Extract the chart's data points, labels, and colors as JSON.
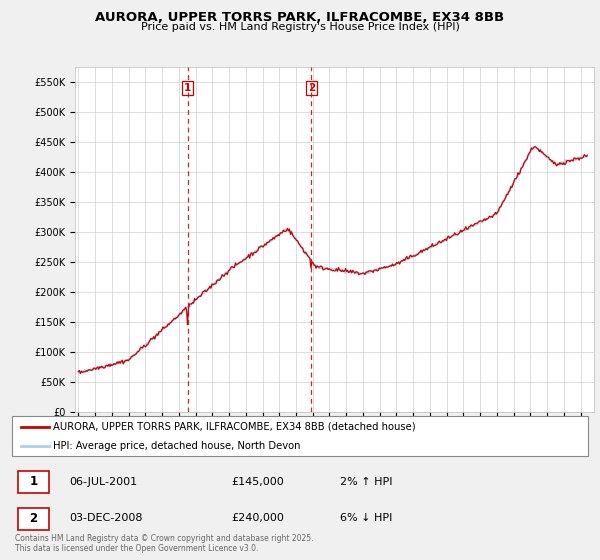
{
  "title_line1": "AURORA, UPPER TORRS PARK, ILFRACOMBE, EX34 8BB",
  "title_line2": "Price paid vs. HM Land Registry's House Price Index (HPI)",
  "ylim": [
    0,
    575000
  ],
  "yticks": [
    0,
    50000,
    100000,
    150000,
    200000,
    250000,
    300000,
    350000,
    400000,
    450000,
    500000,
    550000
  ],
  "ytick_labels": [
    "£0",
    "£50K",
    "£100K",
    "£150K",
    "£200K",
    "£250K",
    "£300K",
    "£350K",
    "£400K",
    "£450K",
    "£500K",
    "£550K"
  ],
  "hpi_color": "#aad0f0",
  "price_color": "#cc0000",
  "vline_color": "#cc0000",
  "plot_bg": "#ffffff",
  "legend_house": "AURORA, UPPER TORRS PARK, ILFRACOMBE, EX34 8BB (detached house)",
  "legend_hpi": "HPI: Average price, detached house, North Devon",
  "transaction1_date": "06-JUL-2001",
  "transaction1_price": "£145,000",
  "transaction1_change": "2% ↑ HPI",
  "transaction2_date": "03-DEC-2008",
  "transaction2_price": "£240,000",
  "transaction2_change": "6% ↓ HPI",
  "footnote": "Contains HM Land Registry data © Crown copyright and database right 2025.\nThis data is licensed under the Open Government Licence v3.0.",
  "vline1_x": 2001.52,
  "vline2_x": 2008.92,
  "xmin": 1994.8,
  "xmax": 2025.8
}
